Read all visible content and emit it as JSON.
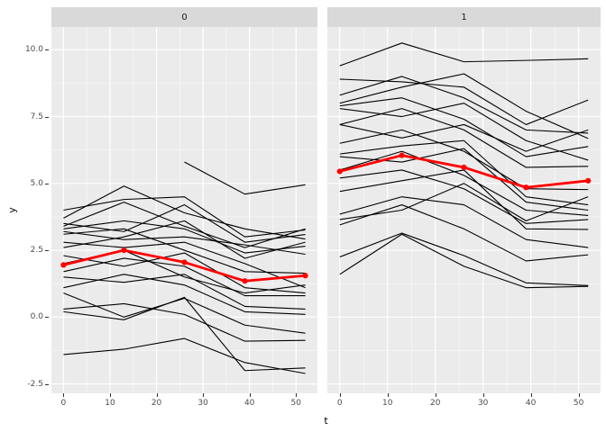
{
  "chart_data": {
    "type": "line",
    "title": "",
    "xlabel": "t",
    "ylabel": "y",
    "description": "Faceted spaghetti plot of individual trajectories y over t with bold red mean profile per facet",
    "x": [
      0,
      13,
      26,
      39,
      52
    ],
    "x_ticks": {
      "values": [
        0,
        10,
        20,
        30,
        40,
        50
      ],
      "labels": [
        "0",
        "10",
        "20",
        "30",
        "40",
        "50"
      ]
    },
    "x_minor": [
      5,
      15,
      25,
      35,
      45
    ],
    "y_ticks": {
      "values": [
        10.0,
        7.5,
        5.0,
        2.5,
        0.0,
        -2.5
      ],
      "labels": [
        "10.0",
        "7.5",
        "5.0",
        "2.5",
        "0.0",
        "-2.5"
      ]
    },
    "y_minor": [
      8.75,
      6.25,
      3.75,
      1.25,
      -1.25
    ],
    "xlim": [
      -2.6,
      54.6
    ],
    "ylim": [
      -2.85,
      10.85
    ],
    "grid": "major+minor",
    "legend": "none",
    "colors": {
      "panel_bg": "#ebebeb",
      "strip_bg": "#d9d9d9",
      "grid": "#ffffff",
      "subject_line": "#000000",
      "mean_line": "#ff0000",
      "tick_text": "#4d4d4d",
      "strip_text": "#1a1a1a"
    },
    "panels": [
      {
        "facet_label": "0",
        "lines": [
          [
            4.0,
            4.4,
            4.5,
            3.0,
            3.26
          ],
          [
            3.7,
            4.9,
            3.9,
            3.3,
            2.92
          ],
          [
            3.5,
            3.2,
            4.2,
            2.8,
            3.09
          ],
          [
            3.3,
            3.6,
            3.3,
            2.4,
            2.65
          ],
          [
            3.2,
            2.9,
            3.0,
            2.7,
            2.35
          ],
          [
            3.1,
            3.3,
            2.5,
            1.7,
            1.64
          ],
          [
            2.8,
            2.6,
            2.8,
            2.0,
            1.1
          ],
          [
            2.3,
            1.9,
            2.4,
            1.1,
            0.9
          ],
          [
            1.7,
            2.2,
            1.9,
            0.8,
            0.8
          ],
          [
            1.5,
            1.3,
            1.6,
            0.4,
            0.3
          ],
          [
            1.1,
            1.6,
            1.2,
            0.2,
            0.1
          ],
          [
            0.9,
            0.0,
            0.7,
            -0.3,
            -0.6
          ],
          [
            0.3,
            0.5,
            0.1,
            -0.9,
            -0.87
          ],
          [
            -1.4,
            -1.2,
            -0.8,
            -1.7,
            -2.11
          ],
          [
            0.2,
            -0.1,
            0.74,
            -2.0,
            -1.9
          ],
          [
            2.0,
            2.5,
            1.5,
            0.9,
            1.2
          ],
          [
            2.6,
            3.0,
            3.6,
            2.2,
            2.8
          ],
          [
            3.4,
            4.3,
            3.4,
            2.6,
            3.3
          ],
          [
            null,
            null,
            5.8,
            4.6,
            4.95
          ]
        ],
        "mean": [
          1.95,
          2.5,
          2.05,
          1.35,
          1.55
        ]
      },
      {
        "facet_label": "1",
        "lines": [
          [
            9.4,
            10.25,
            9.55,
            9.6,
            9.66
          ],
          [
            8.9,
            8.8,
            8.6,
            7.2,
            8.12
          ],
          [
            8.3,
            9.0,
            8.2,
            7.0,
            6.88
          ],
          [
            8.0,
            8.6,
            9.1,
            7.7,
            6.68
          ],
          [
            7.9,
            8.2,
            7.4,
            6.0,
            6.38
          ],
          [
            7.8,
            7.5,
            8.0,
            6.6,
            5.87
          ],
          [
            7.2,
            7.8,
            7.0,
            5.6,
            5.64
          ],
          [
            7.2,
            6.7,
            7.2,
            6.2,
            7.0
          ],
          [
            6.5,
            7.0,
            6.2,
            4.8,
            4.77
          ],
          [
            6.1,
            6.4,
            6.6,
            4.5,
            4.2
          ],
          [
            6.0,
            5.8,
            6.3,
            4.3,
            4.0
          ],
          [
            5.5,
            6.2,
            5.3,
            4.0,
            3.8
          ],
          [
            5.2,
            5.5,
            4.8,
            3.5,
            3.65
          ],
          [
            4.7,
            5.1,
            5.5,
            3.3,
            3.28
          ],
          [
            3.85,
            4.5,
            4.2,
            2.9,
            2.6
          ],
          [
            3.65,
            4.0,
            5.0,
            3.6,
            4.5
          ],
          [
            3.45,
            4.2,
            3.3,
            2.1,
            2.33
          ],
          [
            2.25,
            3.14,
            2.3,
            1.28,
            1.18
          ],
          [
            1.6,
            3.1,
            1.9,
            1.1,
            1.15
          ]
        ],
        "mean": [
          5.45,
          6.05,
          5.6,
          4.85,
          5.1
        ]
      }
    ]
  }
}
